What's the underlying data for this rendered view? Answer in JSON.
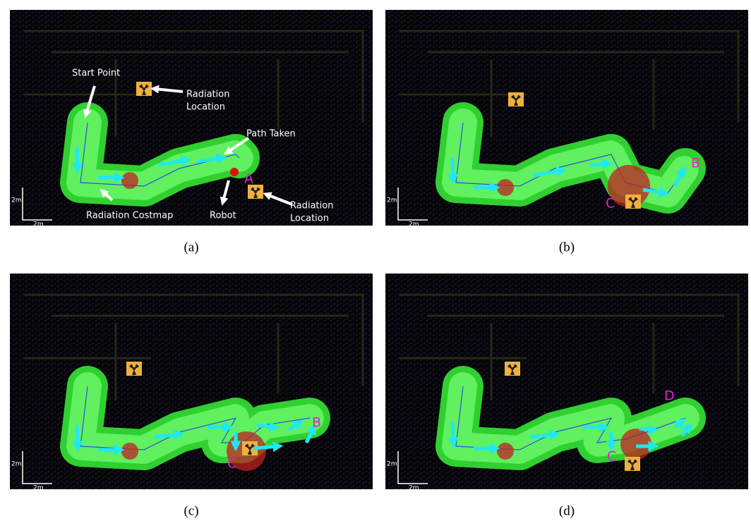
{
  "panels": [
    {
      "caption": "(a)",
      "annotations": [
        "Start Point",
        "Radiation",
        "Location",
        "Path Taken",
        "A",
        "Radiation Costmap",
        "Robot",
        "Radiation",
        "Location"
      ],
      "scale": [
        "2m",
        "2m"
      ]
    },
    {
      "caption": "(b)",
      "annotations": [
        "B",
        "C"
      ],
      "scale": [
        "2m",
        "2m"
      ]
    },
    {
      "caption": "(c)",
      "annotations": [
        "B",
        "C"
      ],
      "scale": [
        "2m",
        "2m"
      ]
    },
    {
      "caption": "(d)",
      "annotations": [
        "D",
        "C"
      ],
      "scale": [
        "2m",
        "2m"
      ]
    }
  ]
}
